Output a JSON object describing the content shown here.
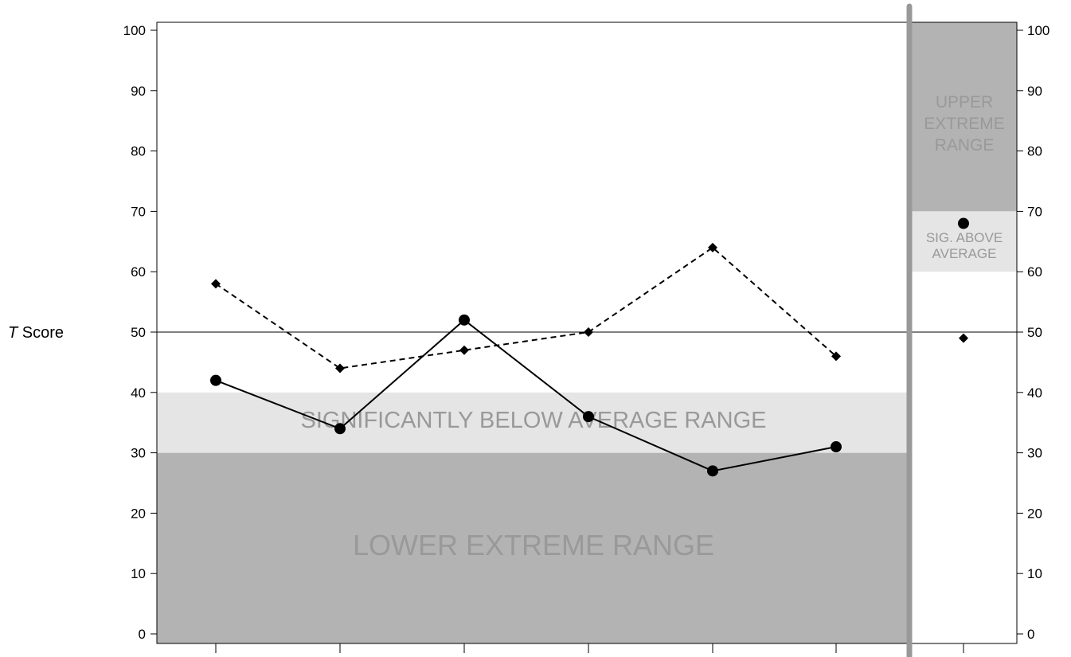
{
  "chart_data": {
    "type": "line",
    "ylabel_italic": "T",
    "ylabel_rest": " Score",
    "ylim": [
      0,
      100
    ],
    "yticks": [
      0,
      10,
      20,
      30,
      40,
      50,
      60,
      70,
      80,
      90,
      100
    ],
    "reference_line": 50,
    "main_x_count": 6,
    "series": [
      {
        "style": "solid",
        "marker": "circle",
        "values": [
          42,
          34,
          52,
          36,
          27,
          31
        ]
      },
      {
        "style": "dashed",
        "marker": "diamond",
        "values": [
          58,
          44,
          47,
          50,
          64,
          46
        ]
      }
    ],
    "right_panel": {
      "circle_value": 68,
      "diamond_value": 49
    },
    "bands_main": [
      {
        "label": "LOWER EXTREME RANGE",
        "from": 0,
        "to": 30,
        "color": "#b3b3b3"
      },
      {
        "label": "SIGNIFICANTLY BELOW AVERAGE RANGE",
        "from": 30,
        "to": 40,
        "color": "#e5e5e5"
      }
    ],
    "bands_right": [
      {
        "lines": [
          "UPPER",
          "EXTREME",
          "RANGE"
        ],
        "from": 70,
        "to": 100,
        "color": "#b3b3b3"
      },
      {
        "lines": [
          "SIG. ABOVE",
          "AVERAGE"
        ],
        "from": 60,
        "to": 70,
        "color": "#e5e5e5"
      }
    ],
    "colors": {
      "line": "#000000",
      "divider": "#999999",
      "label": "#999999"
    }
  }
}
